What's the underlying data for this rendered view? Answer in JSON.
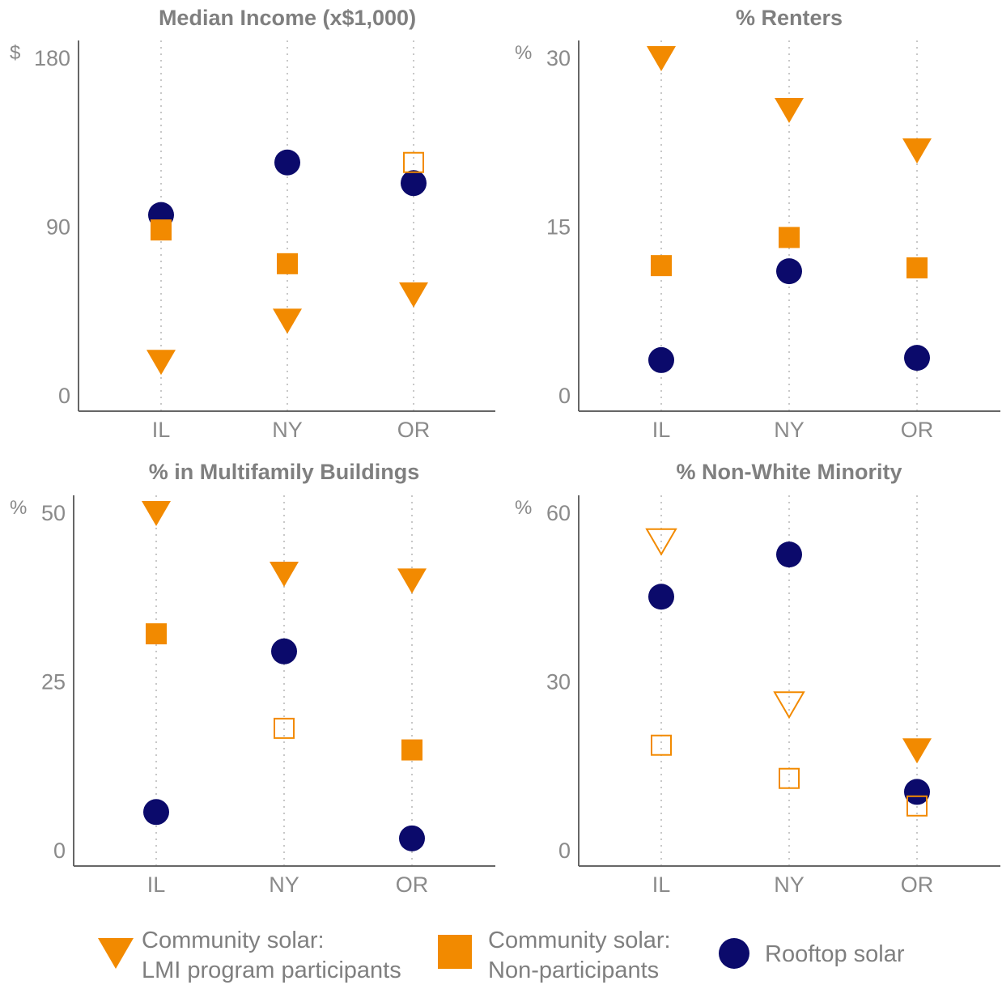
{
  "colors": {
    "lmi": "#F28A00",
    "nonpart": "#F28A00",
    "rooftop": "#0B0A6B",
    "axis": "#666666",
    "grid": "#c8c8c8",
    "text": "#7f7f7f"
  },
  "legend": [
    {
      "marker": "triangle-down",
      "line1": "Community solar:",
      "line2": "LMI program participants"
    },
    {
      "marker": "square",
      "line1": "Community solar:",
      "line2": "Non-participants"
    },
    {
      "marker": "circle",
      "line1": "Rooftop solar",
      "line2": ""
    }
  ],
  "chart_data": [
    {
      "type": "scatter",
      "title": "Median Income (x$1,000)",
      "unit": "$",
      "categories": [
        "IL",
        "NY",
        "OR"
      ],
      "ylim": [
        0,
        180
      ],
      "yticks": [
        0,
        90,
        180
      ],
      "grid": "vertical dotted",
      "series": [
        {
          "name": "Community solar: LMI program participants",
          "marker": "triangle-down",
          "values": [
            18,
            40,
            54
          ],
          "hollow": [
            false,
            false,
            false
          ]
        },
        {
          "name": "Community solar: Non-participants",
          "marker": "square",
          "values": [
            88,
            70,
            124
          ],
          "hollow": [
            false,
            false,
            true
          ]
        },
        {
          "name": "Rooftop solar",
          "marker": "circle",
          "values": [
            96,
            124,
            113
          ],
          "hollow": [
            false,
            false,
            false
          ]
        }
      ]
    },
    {
      "type": "scatter",
      "title": "% Renters",
      "unit": "%",
      "categories": [
        "IL",
        "NY",
        "OR"
      ],
      "ylim": [
        0,
        30
      ],
      "yticks": [
        0,
        15,
        30
      ],
      "grid": "vertical dotted",
      "series": [
        {
          "name": "Community solar: LMI program participants",
          "marker": "triangle-down",
          "values": [
            30,
            25.4,
            21.8
          ],
          "hollow": [
            false,
            false,
            false
          ]
        },
        {
          "name": "Community solar: Non-participants",
          "marker": "square",
          "values": [
            11.5,
            14,
            11.3
          ],
          "hollow": [
            false,
            false,
            false
          ]
        },
        {
          "name": "Rooftop solar",
          "marker": "circle",
          "values": [
            3.1,
            11,
            3.3
          ],
          "hollow": [
            false,
            false,
            false
          ]
        }
      ]
    },
    {
      "type": "scatter",
      "title": "% in Multifamily Buildings",
      "unit": "%",
      "categories": [
        "IL",
        "NY",
        "OR"
      ],
      "ylim": [
        0,
        50
      ],
      "yticks": [
        0,
        25,
        50
      ],
      "grid": "vertical dotted",
      "series": [
        {
          "name": "Community solar: LMI program participants",
          "marker": "triangle-down",
          "values": [
            50,
            41,
            40
          ],
          "hollow": [
            false,
            false,
            false
          ]
        },
        {
          "name": "Community solar: Non-participants",
          "marker": "square",
          "values": [
            32,
            18,
            14.8
          ],
          "hollow": [
            false,
            true,
            false
          ]
        },
        {
          "name": "Rooftop solar",
          "marker": "circle",
          "values": [
            5.6,
            29.4,
            1.7
          ],
          "hollow": [
            false,
            false,
            false
          ]
        }
      ]
    },
    {
      "type": "scatter",
      "title": "% Non-White Minority",
      "unit": "%",
      "categories": [
        "IL",
        "NY",
        "OR"
      ],
      "ylim": [
        0,
        60
      ],
      "yticks": [
        0,
        30,
        60
      ],
      "grid": "vertical dotted",
      "series": [
        {
          "name": "Community solar: LMI program participants",
          "marker": "triangle-down",
          "values": [
            55,
            26,
            17.8
          ],
          "hollow": [
            true,
            true,
            false
          ]
        },
        {
          "name": "Community solar: Non-participants",
          "marker": "square",
          "values": [
            18.6,
            12.7,
            7.8
          ],
          "hollow": [
            true,
            true,
            true
          ]
        },
        {
          "name": "Rooftop solar",
          "marker": "circle",
          "values": [
            45,
            52.5,
            10.3
          ],
          "hollow": [
            false,
            false,
            false
          ]
        }
      ]
    }
  ]
}
